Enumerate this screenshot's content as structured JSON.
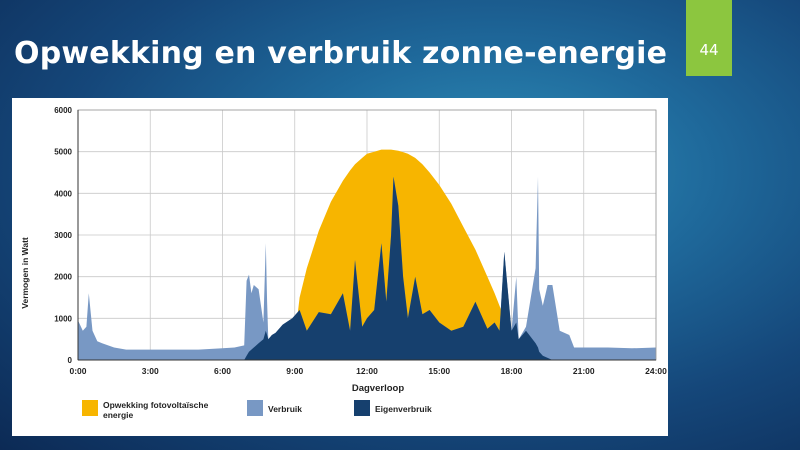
{
  "slide": {
    "title": "Opwekking en verbruik zonne-energie",
    "page_number": "44"
  },
  "colors": {
    "solar": "#f7b500",
    "consumption": "#7898c4",
    "self_consumption": "#16406e",
    "badge": "#8cc63f"
  },
  "chart_data": {
    "type": "area",
    "title": "",
    "xlabel": "Dagverloop",
    "ylabel": "Vermogen in Watt",
    "xlim": [
      0,
      24
    ],
    "ylim": [
      0,
      6000
    ],
    "grid": true,
    "legend_position": "bottom",
    "x_ticks": [
      "0:00",
      "3:00",
      "6:00",
      "9:00",
      "12:00",
      "15:00",
      "18:00",
      "21:00",
      "24:00"
    ],
    "y_ticks": [
      "0",
      "1000",
      "2000",
      "3000",
      "4000",
      "5000",
      "6000"
    ],
    "x_hours": [
      0,
      0.2,
      0.35,
      0.45,
      0.6,
      0.8,
      1.0,
      1.5,
      2,
      3,
      4,
      5,
      6,
      6.5,
      6.9,
      7.0,
      7.1,
      7.2,
      7.3,
      7.5,
      7.7,
      7.8,
      7.85,
      7.9,
      8.05,
      8.2,
      8.5,
      8.9,
      9.2,
      9.5,
      10.0,
      10.5,
      11.0,
      11.3,
      11.5,
      11.8,
      12.0,
      12.3,
      12.6,
      12.8,
      13.0,
      13.1,
      13.3,
      13.5,
      13.7,
      14.0,
      14.3,
      14.6,
      15.0,
      15.5,
      16.0,
      16.5,
      17.0,
      17.3,
      17.5,
      17.7,
      18.0,
      18.2,
      18.3,
      18.6,
      19.0,
      19.1,
      19.15,
      19.3,
      19.5,
      19.7,
      20.0,
      20.4,
      20.6,
      21.0,
      22.0,
      23.0,
      24.0
    ],
    "series": [
      {
        "name": "Opwekking fotovoltaïsche energie",
        "values": [
          0,
          0,
          0,
          0,
          0,
          0,
          0,
          0,
          0,
          0,
          0,
          0,
          0,
          0,
          0,
          0,
          0,
          0,
          0,
          0,
          0,
          0,
          0,
          0,
          0,
          0,
          0,
          0,
          1500,
          2200,
          3100,
          3800,
          4300,
          4550,
          4700,
          4850,
          4950,
          5000,
          5050,
          5050,
          5050,
          5040,
          5020,
          4990,
          4950,
          4850,
          4700,
          4500,
          4200,
          3750,
          3200,
          2650,
          2000,
          1600,
          1300,
          1000,
          600,
          300,
          150,
          20,
          0,
          0,
          0,
          0,
          0,
          0,
          0,
          0,
          0,
          0,
          0,
          0,
          0
        ]
      },
      {
        "name": "Verbruik",
        "values": [
          950,
          700,
          800,
          1600,
          700,
          450,
          400,
          300,
          250,
          250,
          250,
          250,
          280,
          300,
          350,
          1900,
          2050,
          1600,
          1800,
          1700,
          900,
          2800,
          1400,
          500,
          600,
          650,
          850,
          1000,
          1200,
          700,
          1150,
          1100,
          1600,
          700,
          2400,
          800,
          1000,
          1200,
          2800,
          1400,
          3000,
          4400,
          3700,
          2000,
          1000,
          2000,
          1100,
          1200,
          900,
          700,
          800,
          1400,
          750,
          900,
          700,
          2600,
          700,
          2000,
          500,
          800,
          2200,
          4400,
          1700,
          1300,
          1800,
          1800,
          700,
          600,
          300,
          300,
          300,
          280,
          300
        ]
      },
      {
        "name": "Eigenverbruik",
        "values": [
          0,
          0,
          0,
          0,
          0,
          0,
          0,
          0,
          0,
          0,
          0,
          0,
          0,
          0,
          0,
          100,
          200,
          250,
          300,
          400,
          500,
          700,
          600,
          500,
          600,
          650,
          850,
          1000,
          1200,
          700,
          1150,
          1100,
          1600,
          700,
          2400,
          800,
          1000,
          1200,
          2800,
          1400,
          3000,
          4400,
          3700,
          2000,
          1000,
          2000,
          1100,
          1200,
          900,
          700,
          800,
          1400,
          750,
          900,
          700,
          2600,
          700,
          900,
          500,
          700,
          400,
          300,
          200,
          100,
          50,
          0,
          0,
          0,
          0,
          0,
          0,
          0,
          0
        ]
      }
    ],
    "legend": [
      {
        "label": "Opwekking fotovoltaïsche",
        "label2": "energie"
      },
      {
        "label": "Verbruik"
      },
      {
        "label": "Eigenverbruik"
      }
    ]
  }
}
